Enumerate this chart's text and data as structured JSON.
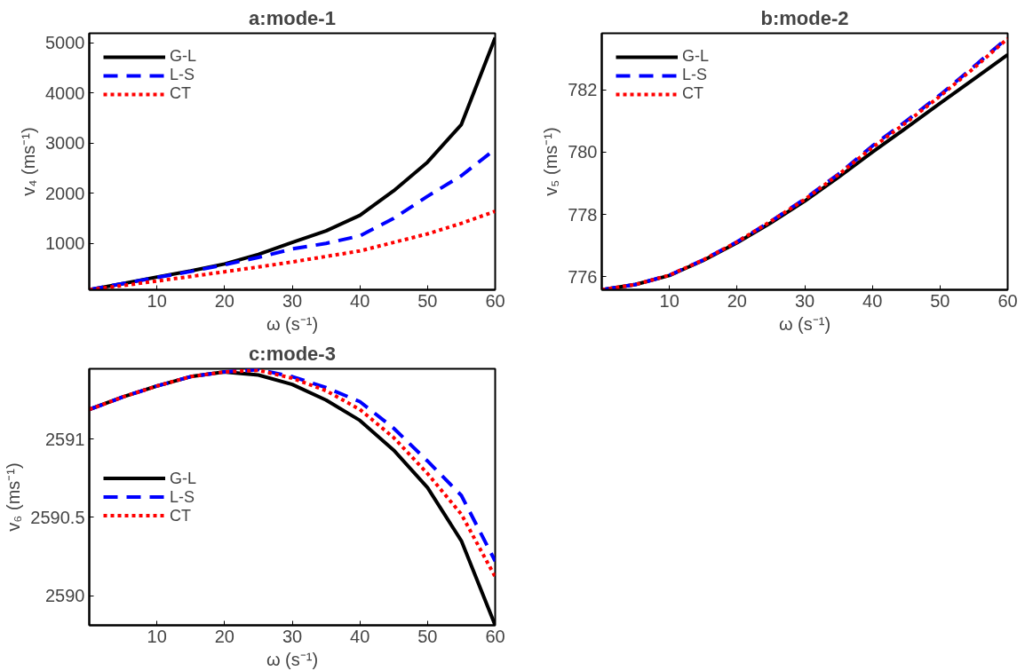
{
  "chart_data": [
    {
      "type": "line",
      "title": "a:mode-1",
      "xlabel": "ω (s⁻¹)",
      "ylabel": "v₄ (ms⁻¹)",
      "xlim": [
        0,
        60
      ],
      "ylim": [
        75,
        5190
      ],
      "xticks": [
        10,
        20,
        30,
        40,
        50,
        60
      ],
      "yticks": [
        1000,
        2000,
        3000,
        4000,
        5000
      ],
      "grid": false,
      "legend": "top left",
      "x": [
        0,
        5,
        10,
        15,
        20,
        25,
        30,
        35,
        40,
        45,
        50,
        55,
        60
      ],
      "series": [
        {
          "name": "G-L",
          "color": "#000000",
          "line_style": "solid",
          "values": [
            75,
            200,
            330,
            450,
            590,
            780,
            1020,
            1250,
            1560,
            2050,
            2620,
            3370,
            5100
          ]
        },
        {
          "name": "L-S",
          "color": "#0000ff",
          "line_style": "dashed",
          "values": [
            75,
            200,
            320,
            440,
            575,
            720,
            890,
            1000,
            1150,
            1500,
            1940,
            2350,
            2880
          ]
        },
        {
          "name": "CT",
          "color": "#ff0000",
          "line_style": "dotted",
          "values": [
            75,
            160,
            250,
            340,
            435,
            530,
            630,
            740,
            850,
            1020,
            1190,
            1400,
            1640
          ]
        }
      ]
    },
    {
      "type": "line",
      "title": "b:mode-2",
      "xlabel": "ω (s⁻¹)",
      "ylabel": "v₅ (ms⁻¹)",
      "xlim": [
        0,
        60
      ],
      "ylim": [
        775.58,
        783.82
      ],
      "xticks": [
        10,
        20,
        30,
        40,
        50,
        60
      ],
      "yticks": [
        776,
        778,
        780,
        782
      ],
      "grid": false,
      "legend": "top left",
      "x": [
        0,
        5,
        10,
        15,
        20,
        25,
        30,
        35,
        40,
        45,
        50,
        55,
        60
      ],
      "series": [
        {
          "name": "G-L",
          "color": "#000000",
          "line_style": "solid",
          "values": [
            775.58,
            775.75,
            776.04,
            776.52,
            777.09,
            777.73,
            778.43,
            779.2,
            780.0,
            780.78,
            781.57,
            782.35,
            783.13
          ]
        },
        {
          "name": "L-S",
          "color": "#0000ff",
          "line_style": "dashed",
          "values": [
            775.58,
            775.75,
            776.05,
            776.54,
            777.12,
            777.78,
            778.5,
            779.3,
            780.2,
            781.0,
            781.84,
            782.75,
            783.68
          ]
        },
        {
          "name": "CT",
          "color": "#ff0000",
          "line_style": "dotted",
          "values": [
            775.58,
            775.75,
            776.05,
            776.54,
            777.12,
            777.78,
            778.48,
            779.28,
            780.15,
            780.95,
            781.8,
            782.7,
            783.65
          ]
        }
      ]
    },
    {
      "type": "line",
      "title": "c:mode-3",
      "xlabel": "ω (s⁻¹)",
      "ylabel": "v₆ (ms⁻¹)",
      "xlim": [
        0,
        60
      ],
      "ylim": [
        2589.81,
        2591.45
      ],
      "xticks": [
        10,
        20,
        30,
        40,
        50,
        60
      ],
      "yticks": [
        2590,
        2590.5,
        2591
      ],
      "grid": false,
      "legend": "left",
      "x": [
        0,
        5,
        10,
        15,
        20,
        25,
        30,
        35,
        40,
        45,
        50,
        55,
        60
      ],
      "series": [
        {
          "name": "G-L",
          "color": "#000000",
          "line_style": "solid",
          "values": [
            2591.19,
            2591.27,
            2591.34,
            2591.4,
            2591.43,
            2591.41,
            2591.35,
            2591.25,
            2591.12,
            2590.93,
            2590.69,
            2590.35,
            2589.81
          ]
        },
        {
          "name": "L-S",
          "color": "#0000ff",
          "line_style": "dashed",
          "values": [
            2591.19,
            2591.27,
            2591.34,
            2591.4,
            2591.43,
            2591.445,
            2591.4,
            2591.33,
            2591.24,
            2591.07,
            2590.86,
            2590.64,
            2590.22
          ]
        },
        {
          "name": "CT",
          "color": "#ff0000",
          "line_style": "dotted",
          "values": [
            2591.19,
            2591.27,
            2591.34,
            2591.4,
            2591.43,
            2591.44,
            2591.39,
            2591.31,
            2591.19,
            2591.01,
            2590.78,
            2590.52,
            2590.12
          ]
        }
      ]
    }
  ]
}
